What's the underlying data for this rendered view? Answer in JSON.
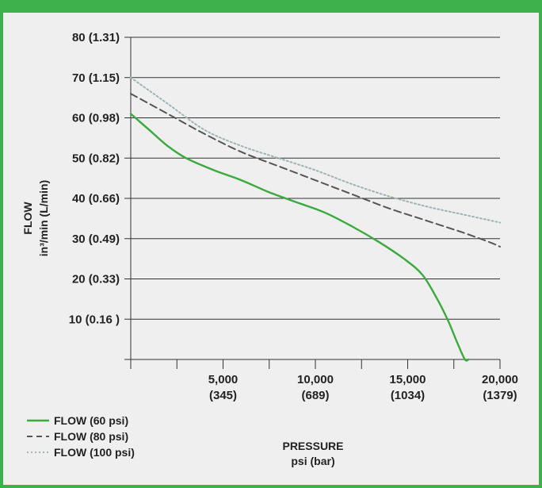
{
  "chart_data": {
    "type": "line",
    "title": "",
    "xlabel": "PRESSURE",
    "xlabel_unit": "psi (bar)",
    "ylabel": "FLOW",
    "ylabel_unit": "in³/min  (L/min)",
    "xlim": [
      0,
      20000
    ],
    "ylim": [
      0,
      80
    ],
    "grid": "horizontal",
    "legend_position": "bottom-left",
    "x_ticks": [
      {
        "value": 5000,
        "label": "5,000",
        "sub": "(345)"
      },
      {
        "value": 10000,
        "label": "10,000",
        "sub": "(689)"
      },
      {
        "value": 15000,
        "label": "15,000",
        "sub": "(1034)"
      },
      {
        "value": 20000,
        "label": "20,000",
        "sub": "(1379)"
      }
    ],
    "x_minor_ticks": [
      0,
      2500,
      5000,
      7500,
      10000,
      12500,
      15000,
      17500,
      20000
    ],
    "y_ticks": [
      {
        "value": 10,
        "label": "10 (0.16 )"
      },
      {
        "value": 20,
        "label": "20 (0.33)"
      },
      {
        "value": 30,
        "label": "30 (0.49)"
      },
      {
        "value": 40,
        "label": "40 (0.66)"
      },
      {
        "value": 50,
        "label": "50 (0.82)"
      },
      {
        "value": 60,
        "label": "60 (0.98)"
      },
      {
        "value": 70,
        "label": "70 (1.15)"
      },
      {
        "value": 80,
        "label": "80 (1.31)"
      }
    ],
    "series": [
      {
        "name": "FLOW (60 psi)",
        "color": "#3aaa3f",
        "style": "solid",
        "x": [
          0,
          1000,
          2000,
          3000,
          4500,
          6000,
          7500,
          9000,
          10500,
          12000,
          13500,
          14800,
          15800,
          16600,
          17200,
          17700,
          18100,
          18300
        ],
        "y": [
          61,
          57,
          53,
          50,
          47,
          44.5,
          41.5,
          39,
          36.5,
          33,
          29,
          25,
          21,
          15,
          9.5,
          4,
          0,
          0
        ]
      },
      {
        "name": "FLOW (80 psi)",
        "color": "#555555",
        "style": "dashed",
        "x": [
          0,
          2000,
          4000,
          6000,
          8000,
          10000,
          12000,
          14000,
          16000,
          18000,
          19500,
          20000
        ],
        "y": [
          66,
          61,
          56,
          51.5,
          48,
          44.5,
          41,
          37.5,
          34.5,
          31.5,
          29,
          28
        ]
      },
      {
        "name": "FLOW (100 psi)",
        "color": "#9fb4b4",
        "style": "dotted",
        "x": [
          0,
          2000,
          4000,
          6000,
          8000,
          10000,
          12000,
          14000,
          16000,
          18000,
          20000
        ],
        "y": [
          70,
          63.5,
          57,
          53,
          50,
          47,
          43.5,
          40.5,
          38,
          36,
          34
        ]
      }
    ]
  }
}
